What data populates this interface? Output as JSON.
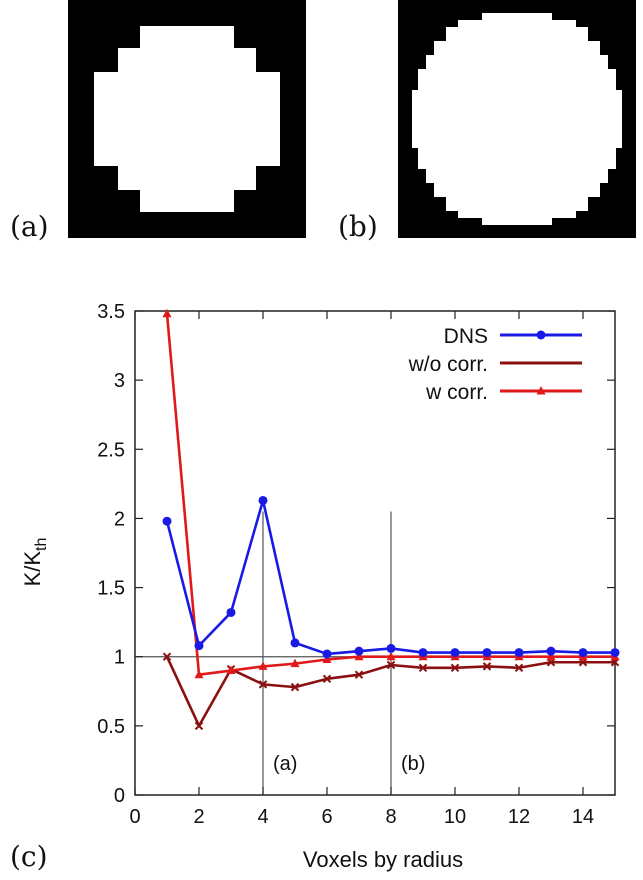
{
  "panels": {
    "a_label": "(a)",
    "b_label": "(b)",
    "c_label": "(c)"
  },
  "chart_data": {
    "type": "line",
    "xlabel": "Voxels by radius",
    "ylabel": "K/K",
    "ylabel_subscript": "th",
    "xlim": [
      0,
      15
    ],
    "ylim": [
      0,
      3.5
    ],
    "x_ticks": [
      "0",
      "2",
      "4",
      "6",
      "8",
      "10",
      "12",
      "14"
    ],
    "y_ticks": [
      "0",
      "0.5",
      "1",
      "1.5",
      "2",
      "2.5",
      "3",
      "3.5"
    ],
    "grid": false,
    "legend_position": "top-right",
    "reference_line_y": 1,
    "markers": [
      {
        "x": 4,
        "label": "(a)"
      },
      {
        "x": 8,
        "label": "(b)"
      }
    ],
    "series": [
      {
        "name": "DNS",
        "color": "#1a1ae6",
        "marker": "circle",
        "x": [
          1,
          2,
          3,
          4,
          5,
          6,
          7,
          8,
          9,
          10,
          11,
          12,
          13,
          14,
          15
        ],
        "values": [
          1.98,
          1.08,
          1.32,
          2.13,
          1.1,
          1.02,
          1.04,
          1.06,
          1.03,
          1.03,
          1.03,
          1.03,
          1.04,
          1.03,
          1.03
        ]
      },
      {
        "name": "w/o corr.",
        "color": "#8b1010",
        "marker": "x",
        "x": [
          1,
          2,
          3,
          4,
          5,
          6,
          7,
          8,
          9,
          10,
          11,
          12,
          13,
          14,
          15
        ],
        "values": [
          1.0,
          0.5,
          0.91,
          0.8,
          0.78,
          0.84,
          0.87,
          0.94,
          0.92,
          0.92,
          0.93,
          0.92,
          0.96,
          0.96,
          0.96
        ]
      },
      {
        "name": "w corr.",
        "color": "#e01a1a",
        "marker": "triangle",
        "x": [
          1,
          2,
          3,
          4,
          5,
          6,
          7,
          8,
          9,
          10,
          11,
          12,
          13,
          14,
          15
        ],
        "values": [
          3.48,
          0.87,
          0.9,
          0.93,
          0.95,
          0.98,
          1.0,
          1.0,
          1.0,
          1.0,
          1.0,
          1.0,
          1.0,
          1.0,
          1.0
        ]
      }
    ]
  }
}
